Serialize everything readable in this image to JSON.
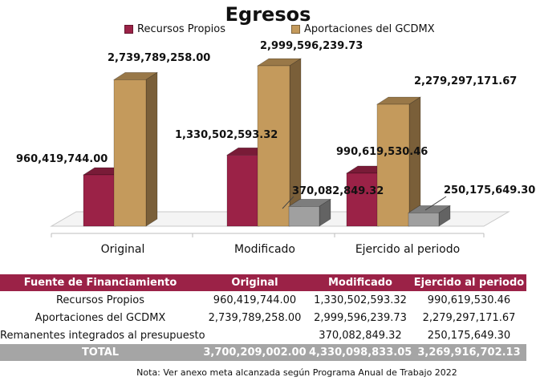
{
  "chart_data": {
    "type": "bar",
    "title": "Egresos",
    "categories": [
      "Original",
      "Modificado",
      "Ejercido al periodo"
    ],
    "series": [
      {
        "name": "Recursos Propios",
        "color": "#9b2247",
        "values": [
          960419744.0,
          1330502593.32,
          990619530.46
        ]
      },
      {
        "name": "Aportaciones del GCDMX",
        "color": "#c49a5c",
        "values": [
          2739789258.0,
          2999596239.73,
          2279297171.67
        ]
      },
      {
        "name": "",
        "color": "#a0a0a0",
        "values": [
          null,
          370082849.32,
          250175649.3
        ]
      }
    ],
    "data_labels": [
      [
        "960,419,744.00",
        "2,739,789,258.00",
        null
      ],
      [
        "1,330,502,593.32",
        "2,999,596,239.73",
        "370,082,849.32"
      ],
      [
        "990,619,530.46",
        "2,279,297,171.67",
        "250,175,649.30"
      ]
    ],
    "grid": false,
    "legend": "top",
    "style": "3d-bar"
  },
  "table": {
    "headers": [
      "Fuente de Financiamiento",
      "Original",
      "Modificado",
      "Ejercido al periodo"
    ],
    "rows": [
      [
        "Recursos Propios",
        "960,419,744.00",
        "1,330,502,593.32",
        "990,619,530.46"
      ],
      [
        "Aportaciones del GCDMX",
        "2,739,789,258.00",
        "2,999,596,239.73",
        "2,279,297,171.67"
      ],
      [
        "Remanentes integrados al presupuesto",
        "",
        "370,082,849.32",
        "250,175,649.30"
      ]
    ],
    "total": [
      "TOTAL",
      "3,700,209,002.00",
      "4,330,098,833.05",
      "3,269,916,702.13"
    ],
    "header_color": "#9b2247",
    "total_color": "#a5a5a5"
  },
  "note": "Nota: Ver anexo meta alcanzada según Programa Anual de Trabajo 2022"
}
